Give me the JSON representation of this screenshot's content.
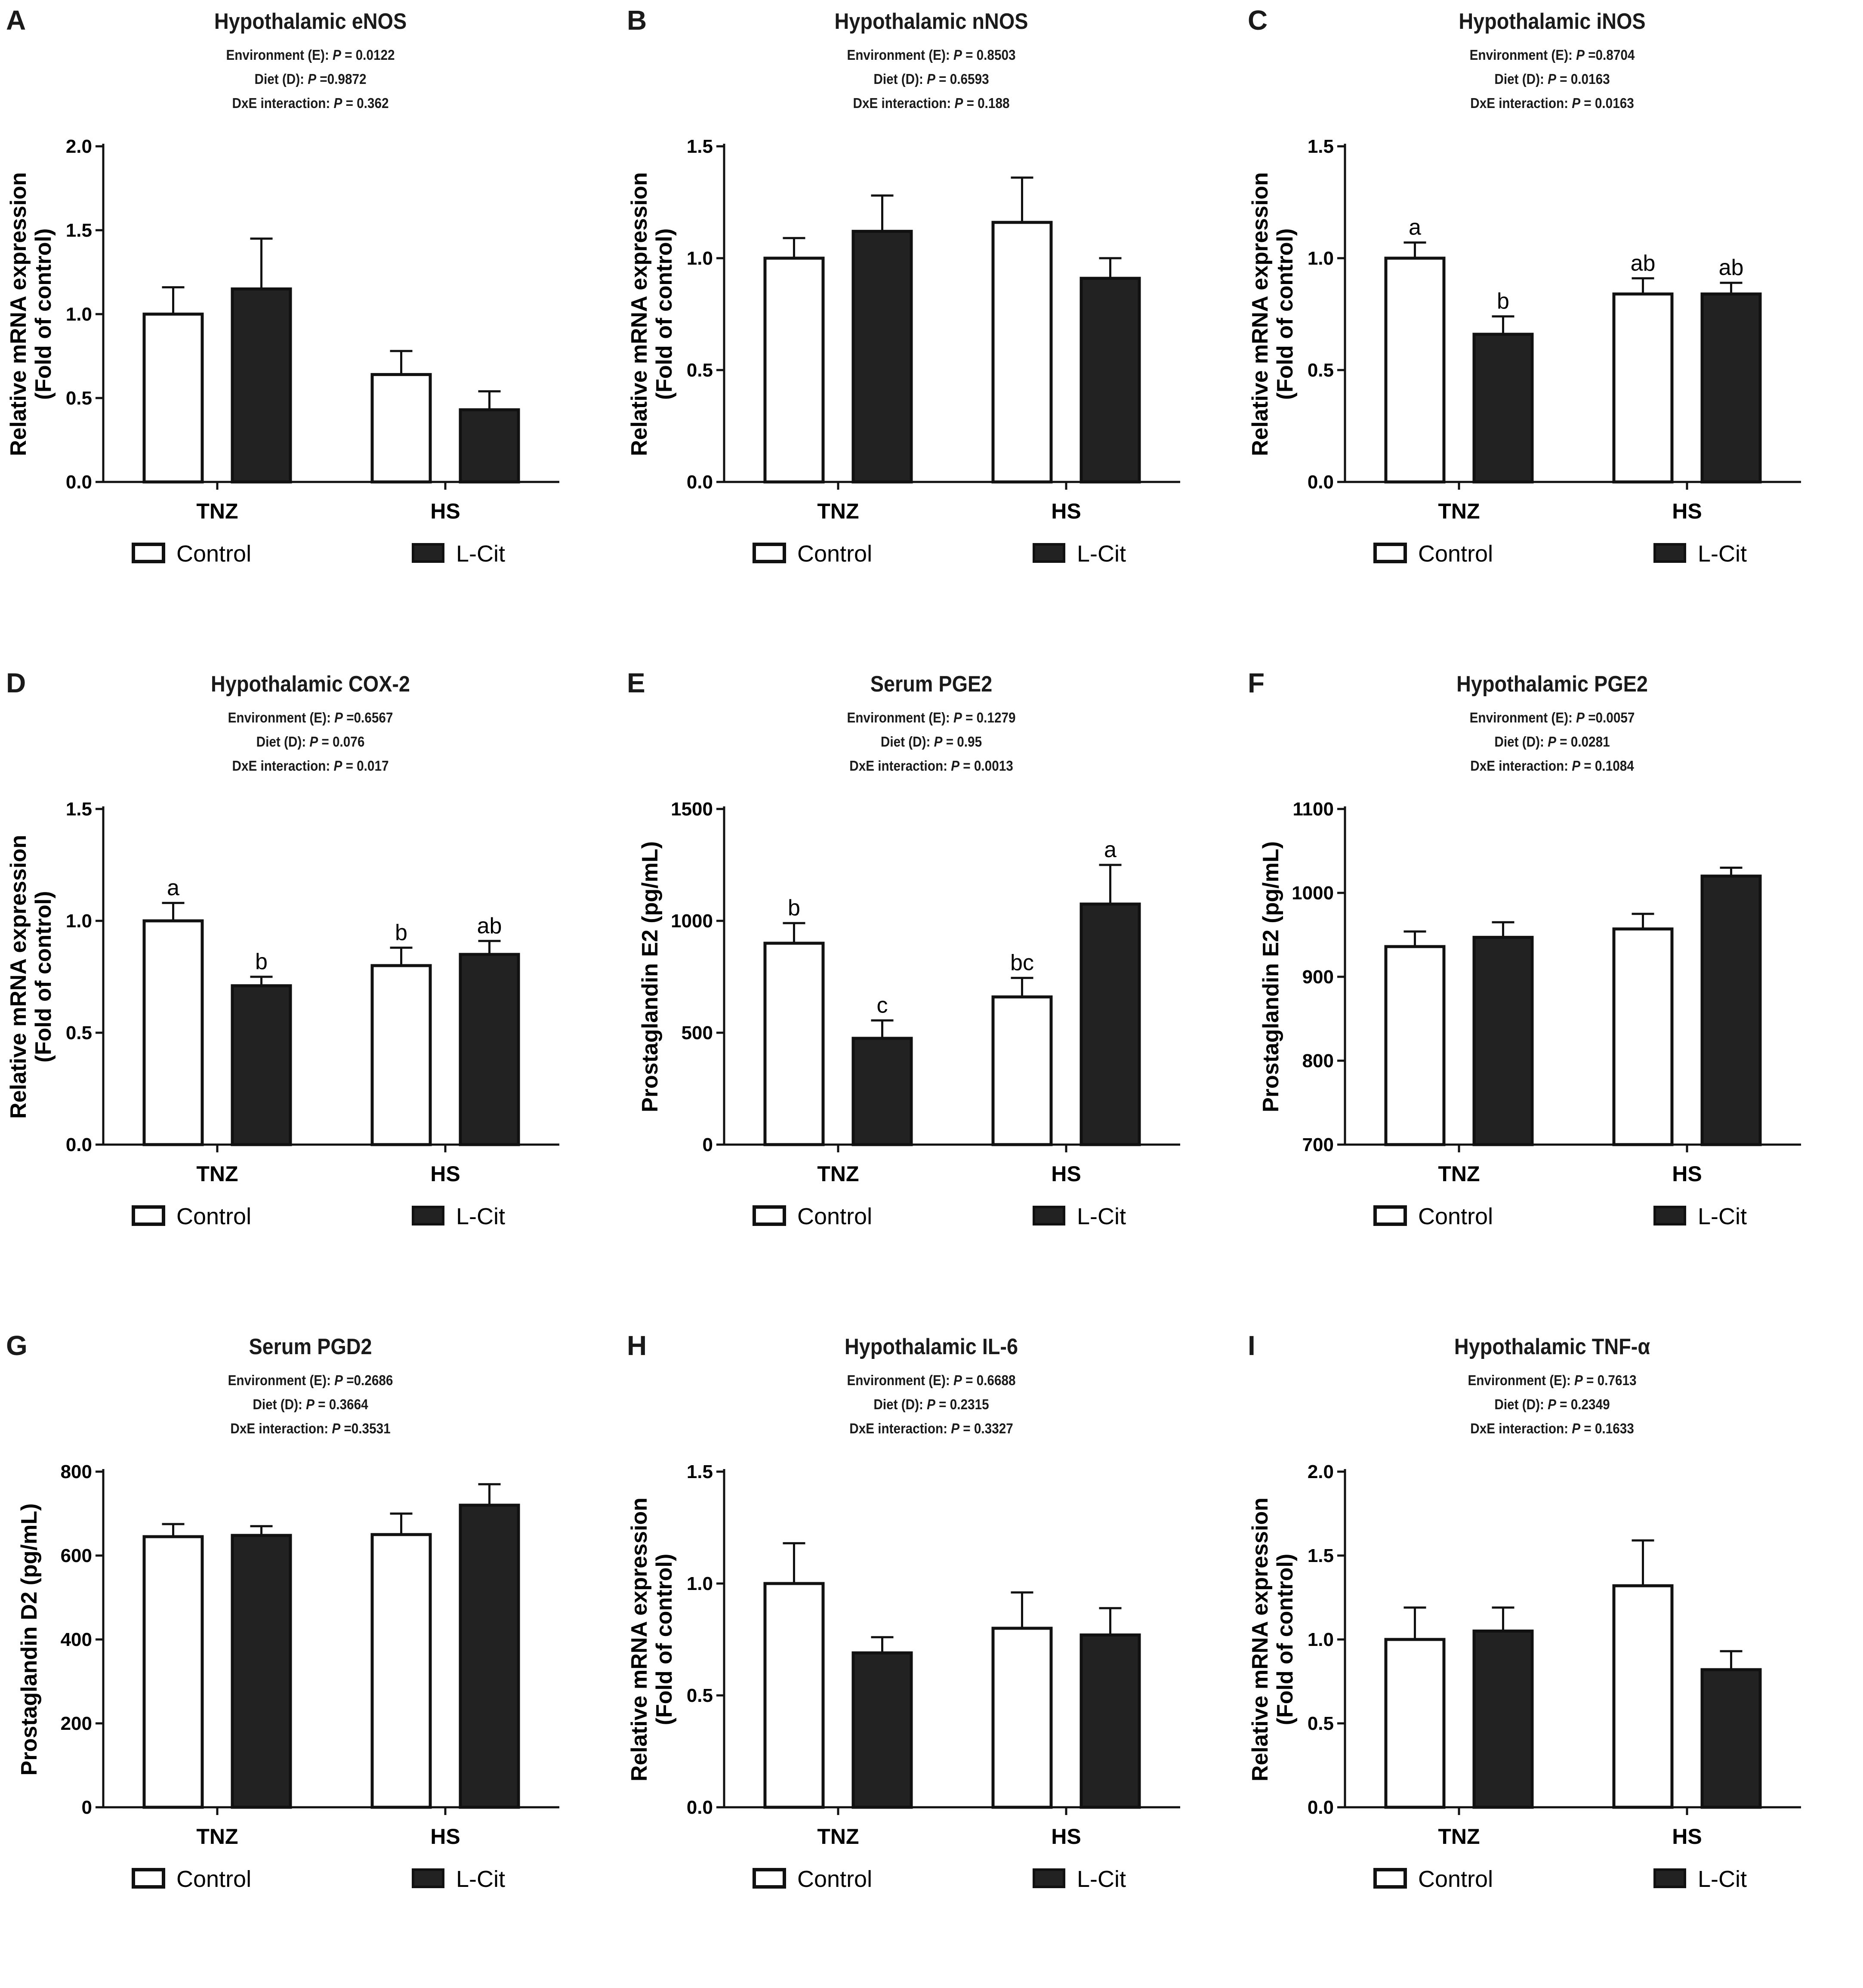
{
  "legend": {
    "control_label": "Control",
    "lcit_label": "L-Cit"
  },
  "colors": {
    "control_fill": "#ffffff",
    "lcit_fill": "#222222",
    "stroke": "#111111"
  },
  "stat_labels": {
    "environment": "Environment (E):",
    "diet": "Diet (D):",
    "interaction": "DxE interaction:",
    "p": "P"
  },
  "chart_data": [
    {
      "id": "A",
      "type": "bar",
      "title": "Hypothalamic eNOS",
      "stats": {
        "environment": "= 0.0122",
        "diet": "=0.9872",
        "interaction": "= 0.362"
      },
      "ylabel": [
        "Relative mRNA expression",
        "(Fold of control)"
      ],
      "ylim": [
        0,
        2.0
      ],
      "yticks": [
        "0.0",
        "0.5",
        "1.0",
        "1.5",
        "2.0"
      ],
      "categories": [
        "TNZ",
        "HS"
      ],
      "series": [
        {
          "name": "Control",
          "values": [
            1.0,
            0.64
          ],
          "errors": [
            0.16,
            0.14
          ]
        },
        {
          "name": "L-Cit",
          "values": [
            1.15,
            0.43
          ],
          "errors": [
            0.3,
            0.11
          ]
        }
      ],
      "letters": null
    },
    {
      "id": "B",
      "type": "bar",
      "title": "Hypothalamic nNOS",
      "stats": {
        "environment": "= 0.8503",
        "diet": "= 0.6593",
        "interaction": "= 0.188"
      },
      "ylabel": [
        "Relative mRNA expression",
        "(Fold of control)"
      ],
      "ylim": [
        0,
        1.5
      ],
      "yticks": [
        "0.0",
        "0.5",
        "1.0",
        "1.5"
      ],
      "categories": [
        "TNZ",
        "HS"
      ],
      "series": [
        {
          "name": "Control",
          "values": [
            1.0,
            1.16
          ],
          "errors": [
            0.09,
            0.2
          ]
        },
        {
          "name": "L-Cit",
          "values": [
            1.12,
            0.91
          ],
          "errors": [
            0.16,
            0.09
          ]
        }
      ],
      "letters": null
    },
    {
      "id": "C",
      "type": "bar",
      "title": "Hypothalamic iNOS",
      "stats": {
        "environment": "=0.8704",
        "diet": "= 0.0163",
        "interaction": "= 0.0163"
      },
      "ylabel": [
        "Relative mRNA expression",
        "(Fold of control)"
      ],
      "ylim": [
        0,
        1.5
      ],
      "yticks": [
        "0.0",
        "0.5",
        "1.0",
        "1.5"
      ],
      "categories": [
        "TNZ",
        "HS"
      ],
      "series": [
        {
          "name": "Control",
          "values": [
            1.0,
            0.84
          ],
          "errors": [
            0.07,
            0.07
          ]
        },
        {
          "name": "L-Cit",
          "values": [
            0.66,
            0.84
          ],
          "errors": [
            0.08,
            0.05
          ]
        }
      ],
      "letters": [
        [
          "a",
          "ab"
        ],
        [
          "b",
          "ab"
        ]
      ]
    },
    {
      "id": "D",
      "type": "bar",
      "title": "Hypothalamic COX-2",
      "stats": {
        "environment": "=0.6567",
        "diet": "= 0.076",
        "interaction": "= 0.017"
      },
      "ylabel": [
        "Relative mRNA expression",
        "(Fold of control)"
      ],
      "ylim": [
        0,
        1.5
      ],
      "yticks": [
        "0.0",
        "0.5",
        "1.0",
        "1.5"
      ],
      "categories": [
        "TNZ",
        "HS"
      ],
      "series": [
        {
          "name": "Control",
          "values": [
            1.0,
            0.8
          ],
          "errors": [
            0.08,
            0.08
          ]
        },
        {
          "name": "L-Cit",
          "values": [
            0.71,
            0.85
          ],
          "errors": [
            0.04,
            0.06
          ]
        }
      ],
      "letters": [
        [
          "a",
          "b"
        ],
        [
          "b",
          "ab"
        ]
      ]
    },
    {
      "id": "E",
      "type": "bar",
      "title": "Serum PGE2",
      "stats": {
        "environment": "= 0.1279",
        "diet": "= 0.95",
        "interaction": "= 0.0013"
      },
      "ylabel": [
        "Prostaglandin E2 (pg/mL)"
      ],
      "ylim": [
        0,
        1500
      ],
      "yticks": [
        "0",
        "500",
        "1000",
        "1500"
      ],
      "categories": [
        "TNZ",
        "HS"
      ],
      "series": [
        {
          "name": "Control",
          "values": [
            900,
            660
          ],
          "errors": [
            90,
            85
          ]
        },
        {
          "name": "L-Cit",
          "values": [
            475,
            1075
          ],
          "errors": [
            80,
            175
          ]
        }
      ],
      "letters": [
        [
          "b",
          "bc"
        ],
        [
          "c",
          "a"
        ]
      ]
    },
    {
      "id": "F",
      "type": "bar",
      "title": "Hypothalamic PGE2",
      "stats": {
        "environment": "=0.0057",
        "diet": "= 0.0281",
        "interaction": "= 0.1084"
      },
      "ylabel": [
        "Prostaglandin E2 (pg/mL)"
      ],
      "ylim": [
        700,
        1100
      ],
      "yticks": [
        "700",
        "800",
        "900",
        "1000",
        "1100"
      ],
      "categories": [
        "TNZ",
        "HS"
      ],
      "series": [
        {
          "name": "Control",
          "values": [
            936,
            957
          ],
          "errors": [
            18,
            18
          ]
        },
        {
          "name": "L-Cit",
          "values": [
            947,
            1020
          ],
          "errors": [
            18,
            10
          ]
        }
      ],
      "letters": null
    },
    {
      "id": "G",
      "type": "bar",
      "title": "Serum PGD2",
      "stats": {
        "environment": "=0.2686",
        "diet": "= 0.3664",
        "interaction": "=0.3531"
      },
      "ylabel": [
        "Prostaglandin D2 (pg/mL)"
      ],
      "ylim": [
        0,
        800
      ],
      "yticks": [
        "0",
        "200",
        "400",
        "600",
        "800"
      ],
      "categories": [
        "TNZ",
        "HS"
      ],
      "series": [
        {
          "name": "Control",
          "values": [
            645,
            650
          ],
          "errors": [
            30,
            50
          ]
        },
        {
          "name": "L-Cit",
          "values": [
            648,
            720
          ],
          "errors": [
            22,
            50
          ]
        }
      ],
      "letters": null
    },
    {
      "id": "H",
      "type": "bar",
      "title": "Hypothalamic IL-6",
      "stats": {
        "environment": "= 0.6688",
        "diet": "= 0.2315",
        "interaction": "= 0.3327"
      },
      "ylabel": [
        "Relative mRNA expression",
        "(Fold of control)"
      ],
      "ylim": [
        0,
        1.5
      ],
      "yticks": [
        "0.0",
        "0.5",
        "1.0",
        "1.5"
      ],
      "categories": [
        "TNZ",
        "HS"
      ],
      "series": [
        {
          "name": "Control",
          "values": [
            1.0,
            0.8
          ],
          "errors": [
            0.18,
            0.16
          ]
        },
        {
          "name": "L-Cit",
          "values": [
            0.69,
            0.77
          ],
          "errors": [
            0.07,
            0.12
          ]
        }
      ],
      "letters": null
    },
    {
      "id": "I",
      "type": "bar",
      "title": "Hypothalamic TNF-α",
      "stats": {
        "environment": "= 0.7613",
        "diet": "= 0.2349",
        "interaction": "= 0.1633"
      },
      "ylabel": [
        "Relative mRNA expression",
        "(Fold of control)"
      ],
      "ylim": [
        0,
        2.0
      ],
      "yticks": [
        "0.0",
        "0.5",
        "1.0",
        "1.5",
        "2.0"
      ],
      "categories": [
        "TNZ",
        "HS"
      ],
      "series": [
        {
          "name": "Control",
          "values": [
            1.0,
            1.32
          ],
          "errors": [
            0.19,
            0.27
          ]
        },
        {
          "name": "L-Cit",
          "values": [
            1.05,
            0.82
          ],
          "errors": [
            0.14,
            0.11
          ]
        }
      ],
      "letters": null
    }
  ]
}
